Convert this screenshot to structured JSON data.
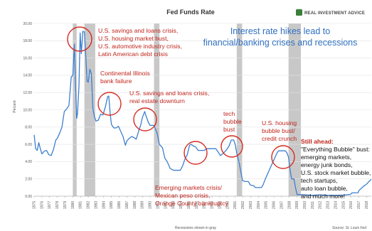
{
  "chart_data": {
    "type": "line",
    "title": "Fed Funds Rate",
    "ylabel": "Percent",
    "xlabel": "Recessions shown in gray",
    "source": "Source: St. Louis Fed",
    "brand": "REAL INVESTMENT ADVICE",
    "headline": [
      "Interest rate hikes lead to",
      "financial/banking crises and recessions"
    ],
    "ylim": [
      0,
      20
    ],
    "y_ticks": [
      "0.00",
      "2.00",
      "4.00",
      "6.00",
      "8.00",
      "10.00",
      "12.00",
      "14.00",
      "16.00",
      "18.00",
      "20.00"
    ],
    "x_ticks": [
      "1975",
      "1976",
      "1977",
      "1978",
      "1979",
      "1980",
      "1981",
      "1982",
      "1983",
      "1984",
      "1985",
      "1986",
      "1987",
      "1988",
      "1989",
      "1990",
      "1991",
      "1992",
      "1993",
      "1994",
      "1995",
      "1996",
      "1997",
      "1998",
      "1999",
      "2000",
      "2001",
      "2002",
      "2003",
      "2004",
      "2005",
      "2006",
      "2007",
      "2008",
      "2009",
      "2010",
      "2011",
      "2012",
      "2013",
      "2014",
      "2015",
      "2016",
      "2017",
      "2018"
    ],
    "xlim": [
      1975,
      2018.6
    ],
    "grid": true,
    "series": [
      {
        "color": "#3d7fd0",
        "points": [
          [
            1975.0,
            7.1
          ],
          [
            1975.2,
            5.5
          ],
          [
            1975.4,
            5.3
          ],
          [
            1975.6,
            6.2
          ],
          [
            1975.8,
            5.5
          ],
          [
            1976.0,
            4.9
          ],
          [
            1976.3,
            5.2
          ],
          [
            1976.6,
            5.3
          ],
          [
            1976.9,
            4.8
          ],
          [
            1977.2,
            4.7
          ],
          [
            1977.5,
            5.4
          ],
          [
            1977.8,
            6.5
          ],
          [
            1978.0,
            6.7
          ],
          [
            1978.3,
            7.3
          ],
          [
            1978.6,
            8.0
          ],
          [
            1978.9,
            9.8
          ],
          [
            1979.2,
            10.1
          ],
          [
            1979.5,
            10.5
          ],
          [
            1979.8,
            13.8
          ],
          [
            1980.0,
            14.0
          ],
          [
            1980.2,
            17.6
          ],
          [
            1980.35,
            13.0
          ],
          [
            1980.5,
            9.0
          ],
          [
            1980.6,
            9.5
          ],
          [
            1980.8,
            12.8
          ],
          [
            1980.95,
            18.9
          ],
          [
            1981.1,
            16.5
          ],
          [
            1981.3,
            19.1
          ],
          [
            1981.5,
            19.0
          ],
          [
            1981.7,
            15.9
          ],
          [
            1981.85,
            13.3
          ],
          [
            1982.0,
            13.2
          ],
          [
            1982.2,
            14.7
          ],
          [
            1982.4,
            14.2
          ],
          [
            1982.6,
            10.1
          ],
          [
            1982.8,
            9.2
          ],
          [
            1983.0,
            8.7
          ],
          [
            1983.3,
            8.8
          ],
          [
            1983.6,
            9.5
          ],
          [
            1983.9,
            9.4
          ],
          [
            1984.2,
            10.3
          ],
          [
            1984.5,
            11.5
          ],
          [
            1984.65,
            11.6
          ],
          [
            1984.85,
            9.4
          ],
          [
            1985.0,
            8.3
          ],
          [
            1985.3,
            7.9
          ],
          [
            1985.6,
            7.9
          ],
          [
            1985.9,
            8.1
          ],
          [
            1986.2,
            7.5
          ],
          [
            1986.5,
            6.9
          ],
          [
            1986.8,
            5.9
          ],
          [
            1987.0,
            6.4
          ],
          [
            1987.3,
            6.7
          ],
          [
            1987.6,
            6.9
          ],
          [
            1987.9,
            6.8
          ],
          [
            1988.2,
            6.6
          ],
          [
            1988.5,
            7.5
          ],
          [
            1988.8,
            8.3
          ],
          [
            1989.0,
            9.1
          ],
          [
            1989.3,
            9.8
          ],
          [
            1989.5,
            9.2
          ],
          [
            1989.8,
            8.5
          ],
          [
            1990.0,
            8.2
          ],
          [
            1990.5,
            8.2
          ],
          [
            1990.9,
            7.3
          ],
          [
            1991.2,
            6.0
          ],
          [
            1991.6,
            5.6
          ],
          [
            1991.9,
            4.4
          ],
          [
            1992.2,
            4.0
          ],
          [
            1992.6,
            3.2
          ],
          [
            1993.0,
            3.0
          ],
          [
            1993.5,
            3.0
          ],
          [
            1993.9,
            3.0
          ],
          [
            1994.2,
            3.5
          ],
          [
            1994.5,
            4.3
          ],
          [
            1994.8,
            4.8
          ],
          [
            1995.1,
            5.9
          ],
          [
            1995.3,
            6.0
          ],
          [
            1995.6,
            5.8
          ],
          [
            1995.9,
            5.7
          ],
          [
            1996.2,
            5.3
          ],
          [
            1996.6,
            5.3
          ],
          [
            1997.0,
            5.3
          ],
          [
            1997.3,
            5.5
          ],
          [
            1997.7,
            5.5
          ],
          [
            1998.0,
            5.5
          ],
          [
            1998.5,
            5.5
          ],
          [
            1998.8,
            5.1
          ],
          [
            1999.1,
            4.7
          ],
          [
            1999.5,
            5.0
          ],
          [
            1999.9,
            5.4
          ],
          [
            2000.2,
            5.8
          ],
          [
            2000.5,
            6.5
          ],
          [
            2000.8,
            6.5
          ],
          [
            2001.0,
            6.0
          ],
          [
            2001.2,
            5.0
          ],
          [
            2001.5,
            3.9
          ],
          [
            2001.8,
            2.5
          ],
          [
            2001.95,
            1.8
          ],
          [
            2002.3,
            1.7
          ],
          [
            2002.7,
            1.7
          ],
          [
            2002.95,
            1.3
          ],
          [
            2003.4,
            1.2
          ],
          [
            2003.6,
            1.0
          ],
          [
            2004.0,
            1.0
          ],
          [
            2004.4,
            1.0
          ],
          [
            2004.6,
            1.3
          ],
          [
            2004.9,
            2.0
          ],
          [
            2005.2,
            2.6
          ],
          [
            2005.5,
            3.2
          ],
          [
            2005.8,
            3.8
          ],
          [
            2006.1,
            4.4
          ],
          [
            2006.4,
            5.0
          ],
          [
            2006.6,
            5.25
          ],
          [
            2007.0,
            5.25
          ],
          [
            2007.5,
            5.25
          ],
          [
            2007.7,
            5.0
          ],
          [
            2007.9,
            4.5
          ],
          [
            2008.1,
            3.0
          ],
          [
            2008.3,
            2.0
          ],
          [
            2008.6,
            2.0
          ],
          [
            2008.8,
            1.0
          ],
          [
            2009.0,
            0.2
          ],
          [
            2010.0,
            0.15
          ],
          [
            2011.0,
            0.1
          ],
          [
            2012.0,
            0.15
          ],
          [
            2013.0,
            0.1
          ],
          [
            2014.0,
            0.1
          ],
          [
            2015.0,
            0.12
          ],
          [
            2015.9,
            0.2
          ],
          [
            2016.1,
            0.38
          ],
          [
            2016.9,
            0.4
          ],
          [
            2017.0,
            0.65
          ],
          [
            2017.3,
            0.9
          ],
          [
            2017.6,
            1.15
          ],
          [
            2018.0,
            1.4
          ],
          [
            2018.3,
            1.7
          ],
          [
            2018.6,
            1.95
          ]
        ]
      }
    ],
    "recessions": [
      [
        1980.0,
        1980.5
      ],
      [
        1981.5,
        1982.9
      ],
      [
        1990.5,
        1991.2
      ],
      [
        2001.2,
        2001.9
      ],
      [
        2007.9,
        2009.5
      ]
    ],
    "annotations": [
      {
        "lines": [
          "U.S. savings and loans crisis,",
          "U.S. housing market bust,",
          "U.S. automotive industry crisis,",
          "Latin American debt crisis"
        ]
      },
      {
        "lines": [
          "Continental Illinois",
          "bank failure"
        ]
      },
      {
        "lines": [
          "U.S. savings and loans crisis,",
          "real estate downturn"
        ]
      },
      {
        "lines": [
          "Emerging markets crisis/",
          "Mexican peso crisis,",
          "Orange County bankruptcy"
        ]
      },
      {
        "lines": [
          "tech",
          "bubble",
          "bust"
        ]
      },
      {
        "lines": [
          "U.S. housing",
          "bubble bust/",
          "credit crunch"
        ]
      },
      {
        "lines": [
          "Still ahead:",
          "\"Everything Bubble\" bust:",
          "emerging markets,",
          "energy junk bonds,",
          "U.S. stock market bubble,",
          "tech startups,",
          "auto loan bubble,",
          "and much more!"
        ]
      }
    ]
  }
}
